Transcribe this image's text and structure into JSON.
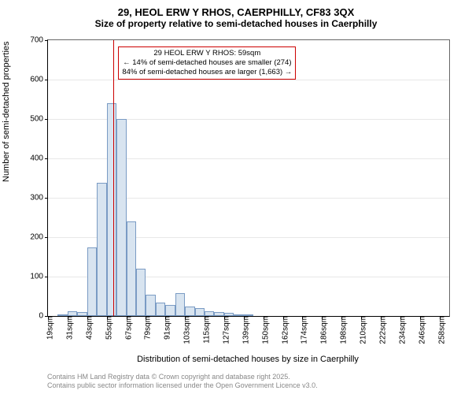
{
  "title": {
    "main": "29, HEOL ERW Y RHOS, CAERPHILLY, CF83 3QX",
    "sub": "Size of property relative to semi-detached houses in Caerphilly"
  },
  "axes": {
    "ylabel": "Number of semi-detached properties",
    "xlabel": "Distribution of semi-detached houses by size in Caerphilly",
    "ylim": [
      0,
      700
    ],
    "yticks": [
      0,
      100,
      200,
      300,
      400,
      500,
      600,
      700
    ],
    "xticks": [
      "19sqm",
      "31sqm",
      "43sqm",
      "55sqm",
      "67sqm",
      "79sqm",
      "91sqm",
      "103sqm",
      "115sqm",
      "127sqm",
      "139sqm",
      "150sqm",
      "162sqm",
      "174sqm",
      "186sqm",
      "198sqm",
      "210sqm",
      "222sqm",
      "234sqm",
      "246sqm",
      "258sqm"
    ]
  },
  "histogram": {
    "type": "histogram",
    "bar_color": "#d8e4f0",
    "bar_border": "#7a9bc4",
    "background_color": "#ffffff",
    "grid_color": "#e8e8e8",
    "bar_width_ratio": 1.0,
    "values": [
      0,
      2,
      12,
      10,
      175,
      338,
      540,
      500,
      240,
      120,
      55,
      35,
      28,
      58,
      24,
      20,
      12,
      10,
      8,
      2,
      2,
      0,
      0,
      0,
      0,
      0,
      0,
      0,
      0,
      0,
      0,
      0,
      0,
      0,
      0,
      0,
      0,
      0,
      0,
      0,
      0
    ]
  },
  "reference": {
    "line_color": "#cc0000",
    "x_value": "59sqm",
    "bar_index": 6.7,
    "annotation": {
      "line1": "29 HEOL ERW Y RHOS: 59sqm",
      "line2": "← 14% of semi-detached houses are smaller (274)",
      "line3": "84% of semi-detached houses are larger (1,663) →"
    }
  },
  "footer": {
    "line1": "Contains HM Land Registry data © Crown copyright and database right 2025.",
    "line2": "Contains public sector information licensed under the Open Government Licence v3.0."
  }
}
